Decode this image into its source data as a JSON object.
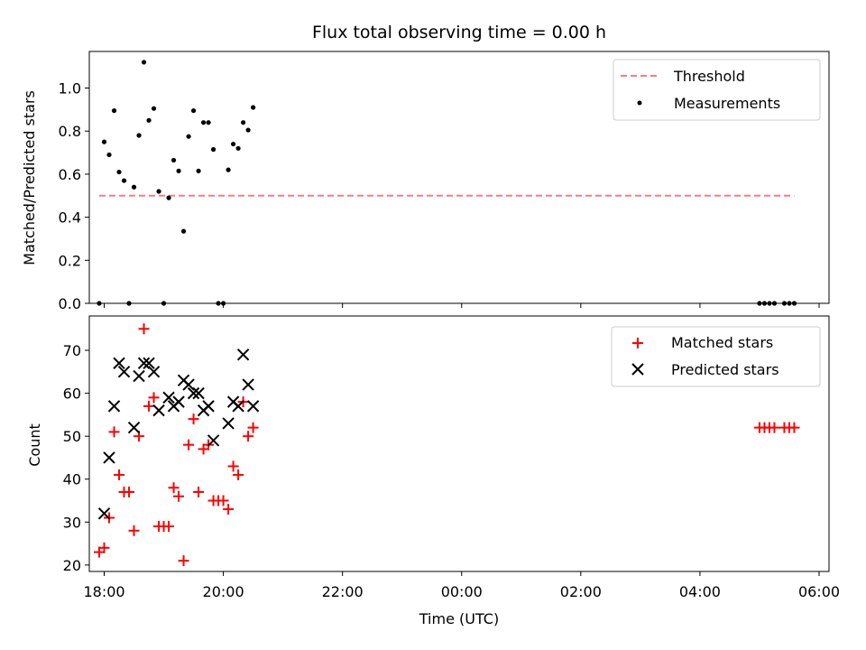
{
  "chart_data": [
    {
      "type": "scatter",
      "title": "Flux total observing time = 0.00 h",
      "xlabel": "",
      "ylabel": "Matched/Predicted stars",
      "xlim": [
        "17:45",
        "06:10"
      ],
      "ylim": [
        0.0,
        1.17
      ],
      "legend_position": "top-right",
      "x_ticks": [
        "18:00",
        "20:00",
        "22:00",
        "00:00",
        "02:00",
        "04:00",
        "06:00"
      ],
      "x_tick_labels_visible": false,
      "y_ticks": [
        0.0,
        0.2,
        0.4,
        0.6,
        0.8,
        1.0
      ],
      "y_tick_labels": [
        "0.0",
        "0.2",
        "0.4",
        "0.6",
        "0.8",
        "1.0"
      ],
      "threshold": {
        "name": "Threshold",
        "value": 0.5,
        "x_start": "17:55",
        "x_end": "05:35",
        "color": "#f08080",
        "style": "dashed"
      },
      "series": [
        {
          "name": "Measurements",
          "marker": "dot",
          "color": "#000000",
          "points": [
            {
              "x": "17:55",
              "y": 0.0
            },
            {
              "x": "18:00",
              "y": 0.75
            },
            {
              "x": "18:05",
              "y": 0.69
            },
            {
              "x": "18:10",
              "y": 0.895
            },
            {
              "x": "18:15",
              "y": 0.61
            },
            {
              "x": "18:20",
              "y": 0.57
            },
            {
              "x": "18:25",
              "y": 0.0
            },
            {
              "x": "18:30",
              "y": 0.54
            },
            {
              "x": "18:35",
              "y": 0.78
            },
            {
              "x": "18:40",
              "y": 1.12
            },
            {
              "x": "18:45",
              "y": 0.85
            },
            {
              "x": "18:50",
              "y": 0.905
            },
            {
              "x": "18:55",
              "y": 0.52
            },
            {
              "x": "19:00",
              "y": 0.0
            },
            {
              "x": "19:05",
              "y": 0.49
            },
            {
              "x": "19:10",
              "y": 0.665
            },
            {
              "x": "19:15",
              "y": 0.615
            },
            {
              "x": "19:20",
              "y": 0.335
            },
            {
              "x": "19:25",
              "y": 0.775
            },
            {
              "x": "19:30",
              "y": 0.895
            },
            {
              "x": "19:35",
              "y": 0.615
            },
            {
              "x": "19:40",
              "y": 0.84
            },
            {
              "x": "19:45",
              "y": 0.84
            },
            {
              "x": "19:50",
              "y": 0.715
            },
            {
              "x": "19:55",
              "y": 0.0
            },
            {
              "x": "20:00",
              "y": 0.0
            },
            {
              "x": "20:05",
              "y": 0.62
            },
            {
              "x": "20:10",
              "y": 0.74
            },
            {
              "x": "20:15",
              "y": 0.72
            },
            {
              "x": "20:20",
              "y": 0.84
            },
            {
              "x": "20:25",
              "y": 0.805
            },
            {
              "x": "20:30",
              "y": 0.91
            },
            {
              "x": "05:00",
              "y": 0.0
            },
            {
              "x": "05:05",
              "y": 0.0
            },
            {
              "x": "05:10",
              "y": 0.0
            },
            {
              "x": "05:15",
              "y": 0.0
            },
            {
              "x": "05:25",
              "y": 0.0
            },
            {
              "x": "05:30",
              "y": 0.0
            },
            {
              "x": "05:35",
              "y": 0.0
            }
          ]
        }
      ]
    },
    {
      "type": "scatter",
      "title": "",
      "xlabel": "Time (UTC)",
      "ylabel": "Count",
      "xlim": [
        "17:45",
        "06:10"
      ],
      "ylim": [
        18.5,
        78
      ],
      "legend_position": "top-right",
      "x_ticks": [
        "18:00",
        "20:00",
        "22:00",
        "00:00",
        "02:00",
        "04:00",
        "06:00"
      ],
      "x_tick_labels": [
        "18:00",
        "20:00",
        "22:00",
        "00:00",
        "02:00",
        "04:00",
        "06:00"
      ],
      "y_ticks": [
        20,
        30,
        40,
        50,
        60,
        70
      ],
      "y_tick_labels": [
        "20",
        "30",
        "40",
        "50",
        "60",
        "70"
      ],
      "series": [
        {
          "name": "Matched stars",
          "marker": "plus",
          "color": "#ff0000",
          "points": [
            {
              "x": "17:55",
              "y": 23
            },
            {
              "x": "18:00",
              "y": 24
            },
            {
              "x": "18:05",
              "y": 31
            },
            {
              "x": "18:10",
              "y": 51
            },
            {
              "x": "18:15",
              "y": 41
            },
            {
              "x": "18:20",
              "y": 37
            },
            {
              "x": "18:25",
              "y": 37
            },
            {
              "x": "18:30",
              "y": 28
            },
            {
              "x": "18:35",
              "y": 50
            },
            {
              "x": "18:40",
              "y": 75
            },
            {
              "x": "18:45",
              "y": 57
            },
            {
              "x": "18:50",
              "y": 59
            },
            {
              "x": "18:55",
              "y": 29
            },
            {
              "x": "19:00",
              "y": 29
            },
            {
              "x": "19:05",
              "y": 29
            },
            {
              "x": "19:10",
              "y": 38
            },
            {
              "x": "19:15",
              "y": 36
            },
            {
              "x": "19:20",
              "y": 21
            },
            {
              "x": "19:25",
              "y": 48
            },
            {
              "x": "19:30",
              "y": 54
            },
            {
              "x": "19:35",
              "y": 37
            },
            {
              "x": "19:40",
              "y": 47
            },
            {
              "x": "19:45",
              "y": 48
            },
            {
              "x": "19:50",
              "y": 35
            },
            {
              "x": "19:55",
              "y": 35
            },
            {
              "x": "20:00",
              "y": 35
            },
            {
              "x": "20:05",
              "y": 33
            },
            {
              "x": "20:10",
              "y": 43
            },
            {
              "x": "20:15",
              "y": 41
            },
            {
              "x": "20:20",
              "y": 58
            },
            {
              "x": "20:25",
              "y": 50
            },
            {
              "x": "20:30",
              "y": 52
            },
            {
              "x": "05:00",
              "y": 52
            },
            {
              "x": "05:05",
              "y": 52
            },
            {
              "x": "05:10",
              "y": 52
            },
            {
              "x": "05:15",
              "y": 52
            },
            {
              "x": "05:25",
              "y": 52
            },
            {
              "x": "05:30",
              "y": 52
            },
            {
              "x": "05:35",
              "y": 52
            }
          ]
        },
        {
          "name": "Predicted stars",
          "marker": "x",
          "color": "#000000",
          "points": [
            {
              "x": "18:00",
              "y": 32
            },
            {
              "x": "18:05",
              "y": 45
            },
            {
              "x": "18:10",
              "y": 57
            },
            {
              "x": "18:15",
              "y": 67
            },
            {
              "x": "18:20",
              "y": 65
            },
            {
              "x": "18:30",
              "y": 52
            },
            {
              "x": "18:35",
              "y": 64
            },
            {
              "x": "18:40",
              "y": 67
            },
            {
              "x": "18:45",
              "y": 67
            },
            {
              "x": "18:50",
              "y": 65
            },
            {
              "x": "18:55",
              "y": 56
            },
            {
              "x": "19:05",
              "y": 59
            },
            {
              "x": "19:10",
              "y": 57
            },
            {
              "x": "19:15",
              "y": 58
            },
            {
              "x": "19:20",
              "y": 63
            },
            {
              "x": "19:25",
              "y": 62
            },
            {
              "x": "19:30",
              "y": 60
            },
            {
              "x": "19:35",
              "y": 60
            },
            {
              "x": "19:40",
              "y": 56
            },
            {
              "x": "19:45",
              "y": 57
            },
            {
              "x": "19:50",
              "y": 49
            },
            {
              "x": "20:05",
              "y": 53
            },
            {
              "x": "20:10",
              "y": 58
            },
            {
              "x": "20:15",
              "y": 57
            },
            {
              "x": "20:20",
              "y": 69
            },
            {
              "x": "20:25",
              "y": 62
            },
            {
              "x": "20:30",
              "y": 57
            }
          ]
        }
      ]
    }
  ]
}
